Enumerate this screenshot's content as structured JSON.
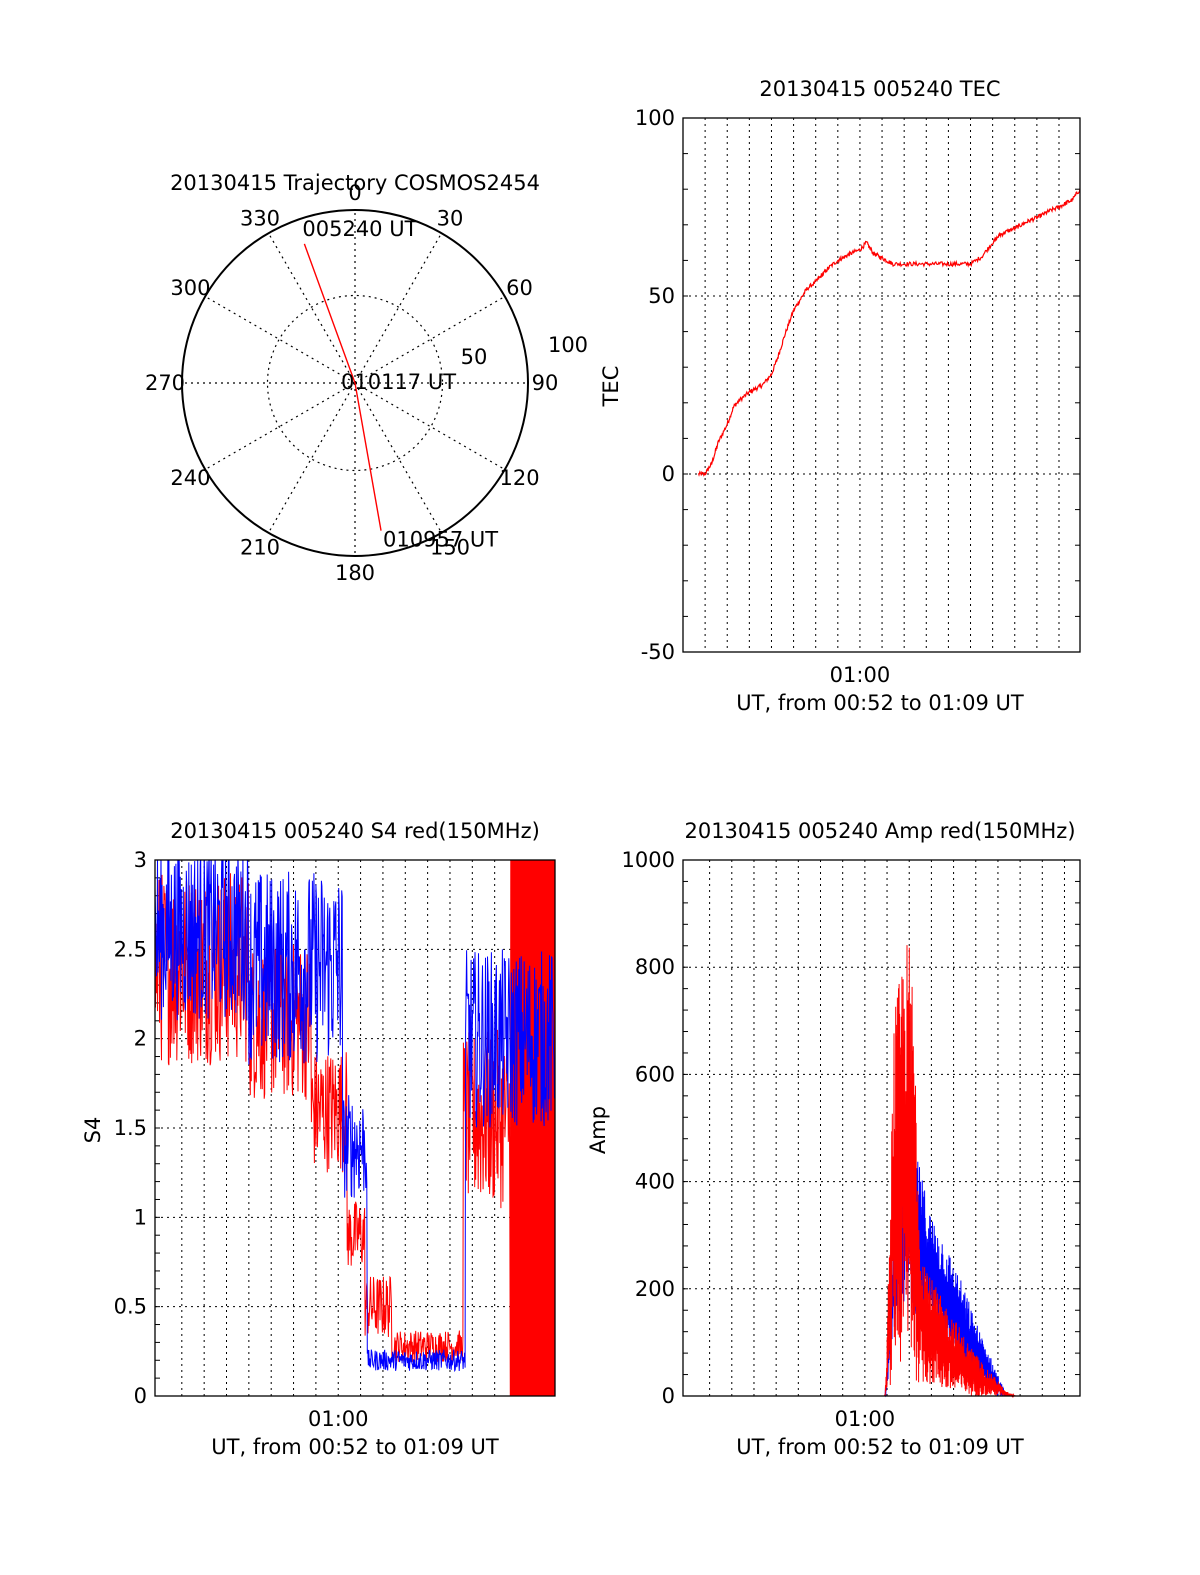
{
  "colors": {
    "red": "#ff0000",
    "blue": "#0000ff",
    "axis": "#000000"
  },
  "chart_data": [
    {
      "id": "polar",
      "type": "polar-trajectory",
      "title": "20130415 Trajectory COSMOS2454",
      "angle_labels": [
        "0",
        "30",
        "60",
        "90",
        "120",
        "150",
        "180",
        "210",
        "240",
        "270",
        "300",
        "330"
      ],
      "radial_tick_labels": [
        "50",
        "100"
      ],
      "radial_max": 100,
      "points": [
        {
          "azimuth": 340,
          "elevation": 13,
          "label": "005240 UT"
        },
        {
          "azimuth": 0,
          "elevation": 0,
          "label": "010117 UT",
          "note": "zenith"
        },
        {
          "azimuth": 170,
          "elevation": 12,
          "label": "010957 UT"
        }
      ],
      "grid": true
    },
    {
      "id": "tec",
      "type": "line",
      "title": "20130415 005240 TEC",
      "xlabel": "UT, from 00:52 to 01:09 UT",
      "ylabel": "TEC",
      "x_tick_labels": [
        "01:00"
      ],
      "xlim_minutes": [
        52.0,
        69.95
      ],
      "ylim": [
        -50,
        100
      ],
      "y_ticks": [
        -50,
        0,
        50,
        100
      ],
      "x_grid_minutes": [
        53,
        54,
        55,
        56,
        57,
        58,
        59,
        60,
        61,
        62,
        63,
        64,
        65,
        66,
        67,
        68,
        69
      ],
      "series": [
        {
          "color": "#ff0000",
          "x": [
            52.7,
            53.0,
            53.3,
            53.6,
            54.0,
            54.3,
            54.6,
            55.0,
            55.3,
            55.6,
            56.0,
            56.3,
            56.6,
            57.0,
            57.3,
            57.6,
            58.0,
            58.3,
            58.6,
            59.0,
            59.3,
            59.6,
            60.0,
            60.3,
            60.6,
            60.9,
            61.2,
            61.5,
            62.0,
            62.5,
            63.0,
            63.5,
            64.0,
            64.5,
            65.0,
            65.5,
            66.0,
            66.3,
            66.6,
            67.0,
            67.3,
            67.6,
            68.0,
            68.3,
            68.6,
            69.0,
            69.3,
            69.6,
            69.95
          ],
          "y": [
            0,
            0,
            3,
            9,
            14,
            19,
            21,
            23,
            24,
            25,
            28,
            33,
            39,
            46,
            49,
            52,
            54,
            56,
            58,
            60,
            61,
            62,
            63,
            65,
            62,
            61,
            60,
            59,
            59,
            59,
            59,
            59,
            59,
            59,
            59,
            61,
            65,
            67,
            68,
            69,
            70,
            71,
            72,
            73,
            74,
            75,
            76,
            77,
            80
          ]
        }
      ]
    },
    {
      "id": "s4",
      "type": "line",
      "title": "20130415 005240 S4 red(150MHz)",
      "xlabel": "UT, from 00:52 to 01:09 UT",
      "ylabel": "S4",
      "x_tick_labels": [
        "01:00"
      ],
      "xlim_minutes": [
        51.8,
        69.7
      ],
      "ylim": [
        0,
        3
      ],
      "y_ticks": [
        0,
        0.5,
        1,
        1.5,
        2,
        2.5,
        3
      ],
      "x_grid_minutes": [
        53,
        54,
        55,
        56,
        57,
        58,
        59,
        60,
        61,
        62,
        63,
        64,
        65,
        66,
        67,
        68,
        69
      ],
      "series": [
        {
          "color": "#ff0000",
          "segments": [
            {
              "x_from": 51.8,
              "x_to": 56.0,
              "mean": 2.4,
              "spread": 0.55
            },
            {
              "x_from": 56.0,
              "x_to": 58.8,
              "mean": 2.1,
              "spread": 0.45
            },
            {
              "x_from": 58.8,
              "x_to": 60.4,
              "mean": 1.6,
              "spread": 0.35
            },
            {
              "x_from": 60.4,
              "x_to": 61.2,
              "mean": 0.9,
              "spread": 0.2
            },
            {
              "x_from": 61.2,
              "x_to": 62.4,
              "mean": 0.5,
              "spread": 0.18
            },
            {
              "x_from": 62.4,
              "x_to": 65.6,
              "mean": 0.28,
              "spread": 0.09
            },
            {
              "x_from": 65.6,
              "x_to": 67.7,
              "mean": 1.55,
              "spread": 0.5
            },
            {
              "x_from": 67.7,
              "x_to": 69.7,
              "mean": 1.5,
              "spread": 1.5
            }
          ]
        },
        {
          "color": "#0000ff",
          "segments": [
            {
              "x_from": 51.8,
              "x_to": 56.0,
              "mean": 2.6,
              "spread": 0.5
            },
            {
              "x_from": 56.0,
              "x_to": 60.2,
              "mean": 2.4,
              "spread": 0.55
            },
            {
              "x_from": 60.2,
              "x_to": 61.3,
              "mean": 1.4,
              "spread": 0.3
            },
            {
              "x_from": 61.3,
              "x_to": 65.7,
              "mean": 0.2,
              "spread": 0.06
            },
            {
              "x_from": 65.7,
              "x_to": 69.7,
              "mean": 2.0,
              "spread": 0.5
            }
          ]
        }
      ]
    },
    {
      "id": "amp",
      "type": "line",
      "title": "20130415 005240 Amp red(150MHz)",
      "xlabel": "UT, from 00:52 to 01:09 UT",
      "ylabel": "Amp",
      "x_tick_labels": [
        "01:00"
      ],
      "xlim_minutes": [
        51.8,
        69.7
      ],
      "ylim": [
        0,
        1000
      ],
      "y_ticks": [
        0,
        200,
        400,
        600,
        800,
        1000
      ],
      "x_grid_minutes": [
        53,
        54,
        55,
        56,
        57,
        58,
        59,
        60,
        61,
        62,
        63,
        64,
        65,
        66,
        67,
        68,
        69
      ],
      "series": [
        {
          "color": "#0000ff",
          "envelope_x": [
            51.8,
            60.9,
            61.0,
            61.3,
            61.7,
            62.0,
            62.5,
            63.0,
            63.5,
            64.0,
            64.5,
            65.0,
            65.5,
            66.0,
            66.4,
            69.7
          ],
          "envelope_hi": [
            0,
            0,
            60,
            330,
            480,
            560,
            420,
            340,
            300,
            250,
            200,
            140,
            90,
            40,
            0,
            0
          ],
          "envelope_lo": [
            0,
            0,
            0,
            120,
            160,
            150,
            130,
            110,
            90,
            60,
            40,
            20,
            10,
            0,
            0,
            0
          ]
        },
        {
          "color": "#ff0000",
          "envelope_x": [
            51.8,
            60.9,
            61.0,
            61.3,
            61.7,
            62.0,
            62.2,
            62.5,
            63.0,
            63.5,
            64.0,
            64.5,
            65.0,
            65.5,
            66.0,
            66.3,
            66.8,
            69.7
          ],
          "envelope_hi": [
            0,
            0,
            100,
            700,
            830,
            860,
            760,
            300,
            220,
            180,
            150,
            110,
            80,
            50,
            30,
            10,
            0,
            0
          ],
          "envelope_lo": [
            0,
            0,
            0,
            40,
            40,
            60,
            30,
            20,
            20,
            10,
            0,
            0,
            0,
            0,
            0,
            0,
            0,
            0
          ]
        }
      ]
    }
  ]
}
